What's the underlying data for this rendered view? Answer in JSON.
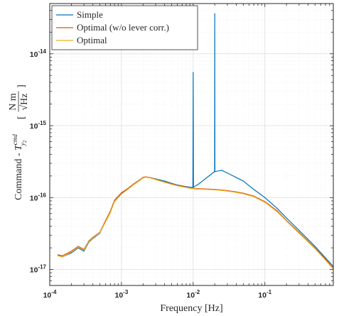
{
  "chart_data": {
    "type": "line",
    "title": "",
    "xlabel": "Frequency [Hz]",
    "ylabel": "Command - T_y2^cmd [N m/√Hz]",
    "ylabel_parts": {
      "prefix": "Command - ",
      "symbol": "T",
      "superscript": "cmd",
      "subscript": "y",
      "subsubscript": "2",
      "unit_numerator": "N m",
      "unit_denominator": "Hz"
    },
    "xscale": "log",
    "yscale": "log",
    "xlim": [
      0.0001,
      0.9
    ],
    "ylim": [
      6e-18,
      5e-14
    ],
    "grid": "major and minor",
    "legend_position": "top-left",
    "x_ticks": [
      {
        "value": 0.0001,
        "base": "10",
        "exp": "-4"
      },
      {
        "value": 0.001,
        "base": "10",
        "exp": "-3"
      },
      {
        "value": 0.01,
        "base": "10",
        "exp": "-2"
      },
      {
        "value": 0.1,
        "base": "10",
        "exp": "-1"
      }
    ],
    "y_ticks": [
      {
        "value": 1e-17,
        "base": "10",
        "exp": "-17"
      },
      {
        "value": 1e-16,
        "base": "10",
        "exp": "-16"
      },
      {
        "value": 1e-15,
        "base": "10",
        "exp": "-15"
      },
      {
        "value": 1e-14,
        "base": "10",
        "exp": "-14"
      }
    ],
    "series": [
      {
        "name": "Simple",
        "color": "#0072BD",
        "x": [
          0.00013,
          0.00015,
          0.0002,
          0.00025,
          0.0003,
          0.00035,
          0.0004,
          0.0005,
          0.0006,
          0.0007,
          0.0008,
          0.001,
          0.0012,
          0.0015,
          0.0018,
          0.002,
          0.0022,
          0.0025,
          0.003,
          0.004,
          0.005,
          0.006,
          0.008,
          0.0099,
          0.01,
          0.0101,
          0.012,
          0.015,
          0.0199,
          0.02,
          0.0201,
          0.025,
          0.03,
          0.04,
          0.05,
          0.07,
          0.1,
          0.15,
          0.2,
          0.3,
          0.5,
          0.7,
          0.9
        ],
        "y": [
          1.6e-17,
          1.5e-17,
          1.7e-17,
          2e-17,
          1.8e-17,
          2.4e-17,
          2.7e-17,
          3.2e-17,
          4.7e-17,
          6.3e-17,
          9e-17,
          1.15e-16,
          1.3e-16,
          1.55e-16,
          1.75e-16,
          1.9e-16,
          1.93e-16,
          1.9e-16,
          1.82e-16,
          1.7e-16,
          1.58e-16,
          1.5e-16,
          1.42e-16,
          1.38e-16,
          5.5e-15,
          1.4e-16,
          1.55e-16,
          1.85e-16,
          2.3e-16,
          3.6e-14,
          2.3e-16,
          2.4e-16,
          2.2e-16,
          1.9e-16,
          1.7e-16,
          1.3e-16,
          1e-16,
          7e-17,
          5.2e-17,
          3.5e-17,
          2.1e-17,
          1.45e-17,
          1.1e-17
        ]
      },
      {
        "name": "Optimal (w/o lever corr.)",
        "color": "#D95319",
        "x": [
          0.00013,
          0.00015,
          0.0002,
          0.00025,
          0.0003,
          0.00035,
          0.0004,
          0.0005,
          0.0006,
          0.0007,
          0.0008,
          0.001,
          0.0012,
          0.0015,
          0.0018,
          0.002,
          0.0022,
          0.0025,
          0.003,
          0.004,
          0.005,
          0.006,
          0.008,
          0.01,
          0.012,
          0.015,
          0.02,
          0.025,
          0.03,
          0.04,
          0.05,
          0.07,
          0.1,
          0.15,
          0.2,
          0.3,
          0.5,
          0.7,
          0.9
        ],
        "y": [
          1.6e-17,
          1.55e-17,
          1.8e-17,
          2.1e-17,
          1.9e-17,
          2.5e-17,
          2.8e-17,
          3.3e-17,
          4.8e-17,
          6.5e-17,
          9.2e-17,
          1.17e-16,
          1.32e-16,
          1.57e-16,
          1.77e-16,
          1.92e-16,
          1.95e-16,
          1.9e-16,
          1.8e-16,
          1.65e-16,
          1.55e-16,
          1.48e-16,
          1.4e-16,
          1.35e-16,
          1.33e-16,
          1.32e-16,
          1.3e-16,
          1.28e-16,
          1.25e-16,
          1.2e-16,
          1.15e-16,
          1.05e-16,
          8.8e-17,
          6.5e-17,
          4.8e-17,
          3.3e-17,
          2e-17,
          1.4e-17,
          1.05e-17
        ]
      },
      {
        "name": "Optimal",
        "color": "#EDB120",
        "x": [
          0.00013,
          0.00015,
          0.0002,
          0.00025,
          0.0003,
          0.00035,
          0.0004,
          0.0005,
          0.0006,
          0.0007,
          0.0008,
          0.001,
          0.0012,
          0.0015,
          0.0018,
          0.002,
          0.0022,
          0.0025,
          0.003,
          0.004,
          0.005,
          0.006,
          0.008,
          0.01,
          0.012,
          0.015,
          0.02,
          0.025,
          0.03,
          0.04,
          0.05,
          0.07,
          0.1,
          0.15,
          0.2,
          0.3,
          0.5,
          0.7,
          0.9
        ],
        "y": [
          1.55e-17,
          1.5e-17,
          1.75e-17,
          2.05e-17,
          1.85e-17,
          2.45e-17,
          2.75e-17,
          3.25e-17,
          4.6e-17,
          6.2e-17,
          8.8e-17,
          1.12e-16,
          1.28e-16,
          1.53e-16,
          1.73e-16,
          1.88e-16,
          1.92e-16,
          1.88e-16,
          1.78e-16,
          1.63e-16,
          1.53e-16,
          1.46e-16,
          1.38e-16,
          1.33e-16,
          1.31e-16,
          1.3e-16,
          1.28e-16,
          1.26e-16,
          1.23e-16,
          1.18e-16,
          1.13e-16,
          1.03e-16,
          8.6e-17,
          6.3e-17,
          4.7e-17,
          3.2e-17,
          1.95e-17,
          1.35e-17,
          1.02e-17
        ]
      }
    ]
  }
}
